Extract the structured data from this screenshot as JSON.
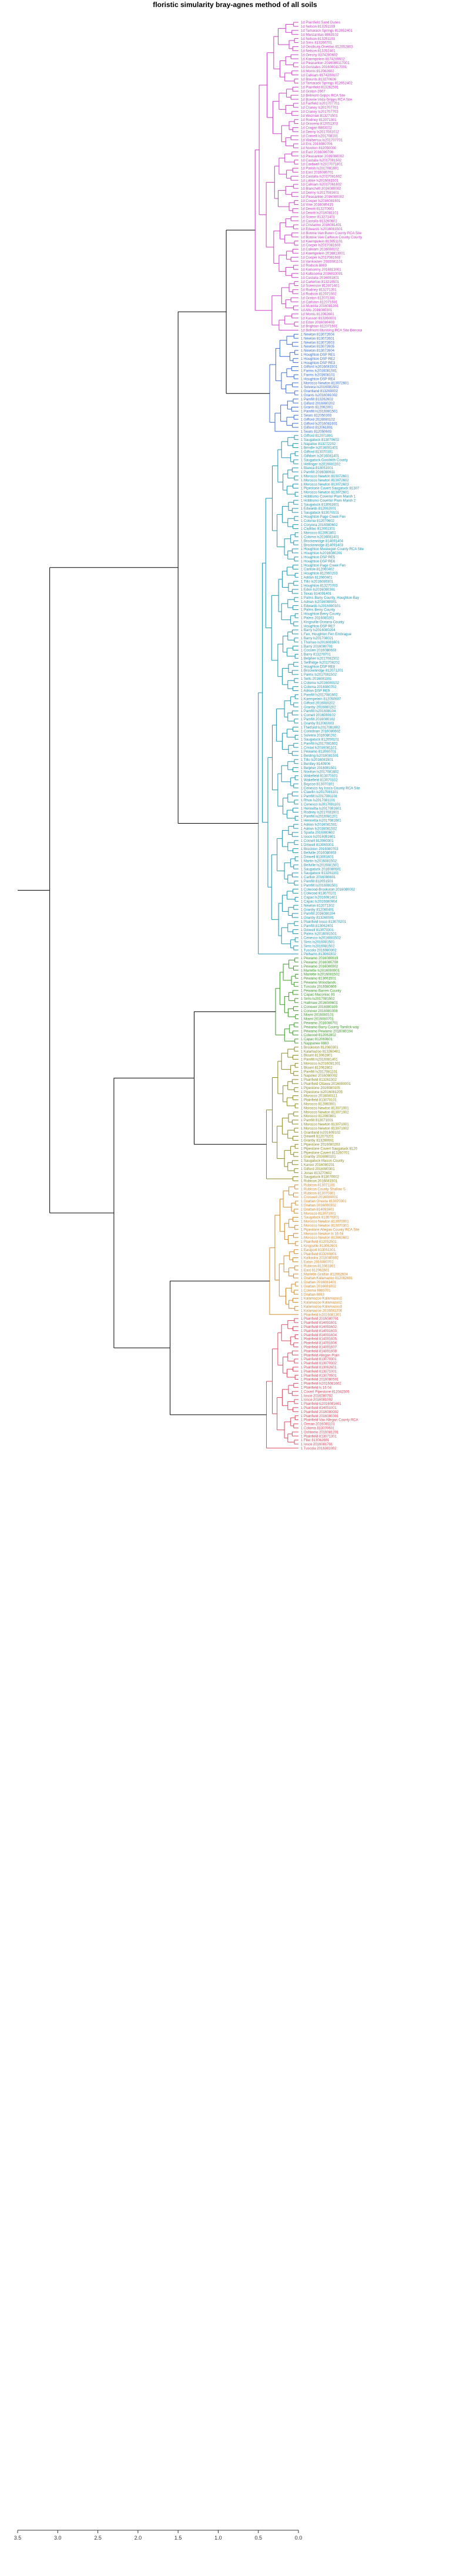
{
  "title": "floristic simularity bray-agnes  method of all soils",
  "chart_data": {
    "type": "dendrogram",
    "orientation": "leaves-right",
    "title": "floristic simularity bray-agnes  method of all soils",
    "xlim": [
      3.5,
      0.0
    ],
    "x_ticks": [
      {
        "value": 3.5,
        "label": "3.5"
      },
      {
        "value": 3.0,
        "label": "3.0"
      },
      {
        "value": 2.5,
        "label": "2.5"
      },
      {
        "value": 2.0,
        "label": "2.0"
      },
      {
        "value": 1.5,
        "label": "1.5"
      },
      {
        "value": 1.0,
        "label": "1.0"
      },
      {
        "value": 0.5,
        "label": "0.5"
      },
      {
        "value": 0.0,
        "label": "0.0"
      }
    ],
    "grid": false,
    "legend": "none",
    "clusters": [
      {
        "color": "#cc3fc8",
        "leaf_height": 0.6,
        "leaves": [
          "1d Plainfield Sand Dunes",
          "1d Nelson 813251103",
          "1d Tamarack Springs 812052401",
          "1d Manzanitas 8863102",
          "1d Nelson 813251103",
          "1d Sims 813260701",
          "1d Oostburg Oneidas 812052803",
          "1d Nelson 813252401",
          "1d Gresny 8174280602",
          "1d Kaempelein 8174280602",
          "1d Pleasanton 2016080117001",
          "1d Gonzales 2016080117001",
          "1d Morris 812062602",
          "1d Calkiam 8174280107",
          "1d Blounts 813270606",
          "1d Tamarack Springs 812052402",
          "1d Plainfield 813262501",
          "1d Graton 2007",
          "1d Belmont Gripps RCA Site",
          "1d Bonnie Vista Gripps RCA Site",
          "1d Fairfield ls201707701",
          "1d Craney ls201707701",
          "1d Craney ls201707703",
          "1d Wozniak 813271501",
          "1d Rodney 812071301",
          "1d Grasenu 812051303",
          "1d Cragan 8863102",
          "1d Denny ls2017081012",
          "1d Cornell ls201708101",
          "1d Walbertux ls201707701",
          "1d Eric 2016080706",
          "1d Noviton 812050000",
          "1d East 2016080706",
          "1d Pleasanton 2016080002",
          "1d Castalia ls2017081502",
          "1d Cardwell ls2017071801",
          "1d Parish ls2017081601",
          "1d East 2016080701",
          "1d Castalia ls2017081602",
          "1d Lobke ls2016081501",
          "1d Calkiam ls2017061802",
          "1d Blanchett 2016080002",
          "1d Denny ls2017081601",
          "1d Pleasanton 2016080002",
          "1d Cooper ls2016081601",
          "1d Vine 2016080415",
          "1d Dewitt 813270601",
          "1d Dewitt ls2016081101",
          "1d Sorenr 813271401",
          "1d Castalia 813260601",
          "1d Cristarmo 2016081401",
          "1d Edwards ls2016081501",
          "1d Bonnie Van Buren County RCA Site",
          "1d Bonnie Van Calhoun County County",
          "1d Kaempelein 813051101",
          "1d Cooper ls2017081603",
          "1d Calkiam 2016080102",
          "1d Kaempelein 2016813001",
          "1d Cooper ls2017081603",
          "1d Vankooten 2016081101",
          "1d Rodson 8863",
          "1d Karsonny 2016813001",
          "1d Kaltscema 2016813001",
          "1d Castalia 2016081801",
          "1d Carterton 813210501",
          "1d Sorenson 812071401",
          "1d Rodney 813271201",
          "1d Rodson 812071502",
          "1d Graton 812071301",
          "1d Carlston 812071601",
          "1d Muirrilla 2016081301",
          "1d Alto 2016080301",
          "1d Morris 812062601",
          "1d Kasson 813260001",
          "1d Edon 2016080403",
          "1d Brighton 812071601",
          "1d Belmont Munising RCA Site Benona"
        ]
      },
      {
        "color": "#3a6fd8",
        "leaf_height": 0.55,
        "leaves": [
          "1 Newton 813072604",
          "1 Newton 813072601",
          "1 Newton 813072603",
          "1 Newton 813072605",
          "1 Newton 813072604",
          "1 Houghton DSP RE1",
          "1 Houghton DSP RE2",
          "1 Houghton DSP RE3",
          "1 Gilford ls2016081501",
          "1 Farms ls2016081501",
          "1 Farms ls201608101",
          "1 Houghton DSP RE4",
          "1 Morocco Newton 813072601",
          "1 Solvera ls2016081502",
          "1 Grantland 813260002",
          "1 Grants ls2016081002",
          "1 Pamfilt 813262602",
          "1 Gilford 2016080202",
          "1 Grants 812062001",
          "1 Pamfilt ls2016081501",
          "1 Sears 812050303",
          "1 Gifford 2016080102",
          "1 Gifford ls2016081601",
          "1 Gilford 812061801",
          "1 Sears 812050603"
        ]
      },
      {
        "color": "#1f96b4",
        "leaf_height": 0.5,
        "leaves": [
          "1 Gifford 812071801",
          "1 Saugatuck 813070602",
          "1 Napatoe 813272202",
          "1 Brindle ls2016081401",
          "1 Gifford 813070101",
          "1 Gilfdam ls2016081401",
          "1 Saugatuck Goodrich County",
          "1 Hellinger ls2016081102",
          "1 Blanca 813051001",
          "1 Pamfilt 2016080611",
          "1 Morocco Newton 813072601",
          "1 Morocco Newton 813072602",
          "1 Morocco Newton 813072603",
          "1 Pipestone Covert Saugatuck 81307",
          "1 Morocco Newton 813072601",
          "1 Hobbsmo Covertol Plum Marsh 1",
          "1 Hobbsmo Covertol Plum Marsh 2",
          "1 Saugatuck 813061601",
          "1 Edwards 812062001",
          "1 Saugatuck 813070101",
          "1 Houghton Page Creek Fen",
          "1 Colonia 812070602",
          "1 Corynna 2016080602",
          "1 Cadillac 812061301",
          "1 Morocco 812061801",
          "1 Coloma ls2016081401",
          "1 Brockenridge 814091404",
          "1 Brockenridge 814091403",
          "1 Houghton Muskegon County RCA Site",
          "1 Houghton ls2016080201",
          "1 Houghton DSP RE5",
          "1 Houghton DSP RE6",
          "1 Houghton Page Creek Fen",
          "1 Carlisle 812060402",
          "1 Houghton 812060203",
          "1 Adrian 812060401",
          "1 Tillo ls2016080301",
          "1 Houghton 813270703",
          "1 Eden ls2016080301",
          "1 Texas 814091401",
          "1 Palms Barry County, Houghton Bay",
          "1 Adrian ls2016080901",
          "1 Edwards ls2016080101",
          "1 Palms Berry County",
          "1 Houghton Berry County",
          "1 Palms 2016080201",
          "1 Kingsville Oceana County",
          "1 Houghton DSP RE7",
          "1 Barry ls2016080204",
          "1 Fen, Houghton Fen Embrague",
          "1 Barry ls201708021",
          "1 Thomas ls2016081601",
          "1 Barry 2016080701",
          "1 Cossen 2016080603",
          "1 Barry 813270701",
          "1 Belpher ls2017081502",
          "1 Sellfridge ls201708202",
          "1 Houghton DSP RE8",
          "1 Brockenridge 812071201",
          "1 Palms ls2017081502",
          "1 Sells 2016081101",
          "1 Coloma ls2016080102",
          "1 Coloma 2016080702",
          "1 Adrian DSP RE9",
          "1 Pamfilt ls2017081602",
          "1 Kaempelein 812050607",
          "1 Gifford 2016080202",
          "1 Granby 2016080202",
          "1 Pamfilt ls201608104",
          "1 Cornell 2016080102",
          "1 Pamfilt 2016080102",
          "1 Granby 812061603",
          "1 Thetford ls2017081602",
          "1 Corinthian 2016080602",
          "1 Solvera 2016080202",
          "1 Saugatuck 812050101",
          "1 Pamfilt ls2017081602",
          "1 Cristal ls2016081101",
          "1 Pewamo 812060701",
          "1 Belding ls2016081501",
          "1 Tillo ls2016081501",
          "1 Bentley 8140906",
          "1 Belpher 2016081501",
          "1 Noviton ls2017081602",
          "1 Wakefield 813070101",
          "1 Wakefield 813070102",
          "1 Boycoo 813070101",
          "1 Cenesco Ivy Iosca County RCA Site",
          "1 Clawfin ls2017081101",
          "1 Pamfilt ls2017081101",
          "1 Rhon ls2017081101",
          "1 Cenesco ls2017081101",
          "1 Hennetta ls2017081601",
          "1 Rodney ls2017081601",
          "1 Pamfilt ls2016081201",
          "1 Hennetta ls2017081601",
          "1 Adrian ls2016081501",
          "1 Adrian ls2016081502",
          "1 Sparta 2016080602",
          "1 Iosco ls2016081601",
          "1 Cornell 813060301",
          "1 Dinwell 813060301",
          "1 Brockton 2016080703",
          "1 Bellville 2016080803",
          "1 Dinwell 813061601",
          "1 Martin ls2016081502",
          "1 Bellville ls2016081501",
          "1 Saugatuck 2016080601",
          "1 Saugatuck 813261101",
          "1 Carlton 2016080601",
          "1 Pamfilt 812051501",
          "1 Pamfilt ls2016081501",
          "1 Colwood-Brookston 2016080002",
          "1 Colwood 813070101",
          "1 Capac ls2016081401",
          "1 Capac ls2016080904",
          "1 Newton 812071302",
          "1 Granby 812060401",
          "1 Pamfilt 2016080204",
          "1 Granby 813260501",
          "1 Plainfield Iosco 813070201",
          "1 Pamfilt 813062401",
          "1 Dinwell 813070301",
          "1 Palms ls2016081501",
          "1 Cenesco ls2016081502",
          "1 Sims ls2016081501",
          "1 Sims ls2016081502",
          "1 Tuscola 2016080002",
          "1 Pelhams 813060302"
        ]
      },
      {
        "color": "#3d9a2a",
        "leaf_height": 0.45,
        "leaves": [
          "1 Pewamo 2016080619",
          "1 Pewamo 2016080708",
          "1 Pewamo 2016080902",
          "1 Marlette ls2016080901",
          "1 Marlette ls2016081502",
          "1 Pewamo 813061501",
          "1 Pewamo Woodlands",
          "1 Tuscola 2016080606",
          "1 Pewamo Barren County",
          "1 Capac Maconiac 81",
          "1 Sims ls2017081502",
          "1 Hallmaw 2016080601",
          "1 Conover 2016080105",
          "1 Conover 2016081008",
          "1 Miami 2016080101",
          "1 Miami 2016080701",
          "1 Pewamo 2016080701",
          "1 Pewamo Barry County Tamlick way",
          "1 Pewamo Pewamo 2016080104",
          "1 Colwood 812062802",
          "1 Capac 812060601",
          "1 Nappanee 8863"
        ]
      },
      {
        "color": "#8c8a1e",
        "leaf_height": 0.5,
        "leaves": [
          "1 Brookston 812060301",
          "1 Kalamazoo 813260401",
          "1 Blount 813062801",
          "1 Pamfilt ls2016081401",
          "1 Morocco ls2016081301",
          "1 Blount 812062802",
          "1 Pamfilt ls2017081101",
          "1 Napoleo 2016080002",
          "1 Plainfield 813261302",
          "1 Plainfield Ottawa 2016080001",
          "1 Pipestone 2016080105",
          "1 Pipestone ls2016081205",
          "1 Morocco 2016080111",
          "1 Plainfield 813070101",
          "1 Morocco 812060001",
          "1 Morocco Newton 813071001",
          "1 Morocco Newton 813071002",
          "1 Morocco 812060801",
          "1 Pamfilt 813071001",
          "1 Morocco Newton 813071001",
          "1 Morocco Newton 813071002",
          "1 Grantland ls201609102",
          "1 Dinwell 812070201",
          "1 Granby 813260601",
          "1 Pipestone 2016080203",
          "1 Pipestone Covert Saugatuck 8120",
          "1 Pipestone Covert 813260701",
          "1 Granby 2016080101",
          "1 Saugatuck Mason County",
          "1 Kanoo 2016080201",
          "1 Gilford 2016080301",
          "1 Jonas 813270602",
          "1 Saugatuck 813070002",
          "1 Rubicon 2016081501"
        ]
      },
      {
        "color": "#d48a2e",
        "leaf_height": 0.45,
        "leaves": [
          "1 Rubicon 813071101",
          "1 Rubicon County Shallow S",
          "1 Rubicon 813070301",
          "1 Croswell 2016080001",
          "1 Grattan Oneida 813070301",
          "1 Grattan 2016080302",
          "1 Grattan 814091601",
          "1 Morocco 813071001",
          "1 Saugatuck 813070301",
          "1 Morocco Newton 813070001",
          "1 Morocco Newton 813070301",
          "1 Pipestone Allegan County RCA Site",
          "1 Morocco Newton ls 16 04",
          "1 Morocco Newton 813062601",
          "1 Plainfield 812052501",
          "1 Kingsville 813062601",
          "1 Eastport 813051301",
          "1 Plainfield 813260801",
          "1 Kalkaska 2016080802",
          "1 Eaton 2016080701",
          "1 Rubicon 812061801",
          "1 East 812062601",
          "1 Marlette Grattan 812062604",
          "1 Grattan Kalamazoo 812062601",
          "1 Grattan 2016081401",
          "1 Grattan 2016081002",
          "1 Coloma 8883701",
          "1 Grattan 8863",
          "1 Kalamazoo Kalamazoo1",
          "1 Kalamazoo Kalamazoo2",
          "1 Kalamazoo Kalamazoo3",
          "1 Kalamazoo 2016081206",
          "1 Plainfield ls2016081301"
        ]
      },
      {
        "color": "#e0485f",
        "leaf_height": 0.5,
        "leaves": [
          "1 Plainfield 2016080701",
          "1 Plainfield 814091601",
          "1 Plainfield 814091602",
          "1 Plainfield 814091603",
          "1 Plainfield 814091604",
          "1 Plainfield 814091605",
          "1 Plainfield 814091606",
          "1 Plainfield 814091607",
          "1 Plainfield 814091608",
          "1 Plainfield Allegan Plain",
          "1 Plainfield 813070301",
          "1 Plainfield 813070302",
          "1 Plainfield 813062601",
          "1 Plainfield 813071001",
          "1 Plainfield 813070501",
          "1 Plainfield 2016080501",
          "1 Plainfield ls2016081602",
          "1 Plainfield ls 16 04",
          "1 Covert Pipestone 812042506",
          "1 Iosco 2016080702",
          "1 Iosco 2016081002",
          "1 Plainfield ls2016081601",
          "1 Plainfield 814051001",
          "1 Plainfield 2016080002",
          "1 Plainfield 2016080301",
          "1 Plainfield Van Allegan County RCA",
          "1 Orman 2016081101",
          "1 Coloma 813070601",
          "1 Oshtemo 2016081201",
          "1 Plainfield 813071301",
          "1 Filer 813062601",
          "1 Iosco 2016081701",
          "1 Tuscola 2016081002"
        ]
      }
    ]
  }
}
